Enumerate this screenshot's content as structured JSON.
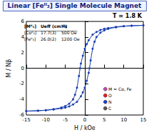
{
  "chart_data": {
    "type": "line",
    "title": "Linear [Feᴵᴵ₃] Single Molecule Magnet",
    "x_label": "H / kOe",
    "y_label": "M / Nβ",
    "annotation": "T = 1.8 K",
    "xlim": [
      -15,
      15
    ],
    "xticks": [
      -15,
      -10,
      -5,
      0,
      5,
      10,
      15
    ],
    "ylim": [
      -6,
      6
    ],
    "yticks": [
      -6,
      -4,
      -2,
      0,
      2,
      4,
      6
    ],
    "grid": false,
    "marker": "circle",
    "series": [
      {
        "color": "#1a3fb0",
        "x": [
          15,
          12,
          10,
          8,
          6,
          5,
          4,
          3,
          2,
          1,
          0.5,
          0,
          -0.5,
          -1,
          -1.2,
          -1.5,
          -2,
          -2.5,
          -3,
          -4,
          -5,
          -6,
          -8,
          -10,
          -12,
          -15
        ],
        "values": [
          5.5,
          5.45,
          5.4,
          5.3,
          5.15,
          5.05,
          4.9,
          4.65,
          4.3,
          3.6,
          3.1,
          2.5,
          1.6,
          0.6,
          0,
          -1.0,
          -2.5,
          -3.4,
          -4.0,
          -4.55,
          -4.85,
          -5.05,
          -5.25,
          -5.38,
          -5.45,
          -5.5
        ]
      },
      {
        "color": "#1a3fb0",
        "x": [
          -15,
          -12,
          -10,
          -8,
          -6,
          -5,
          -4,
          -3,
          -2,
          -1,
          -0.5,
          0,
          0.5,
          1,
          1.2,
          1.5,
          2,
          2.5,
          3,
          4,
          5,
          6,
          8,
          10,
          12,
          15
        ],
        "values": [
          -5.5,
          -5.45,
          -5.4,
          -5.3,
          -5.15,
          -5.05,
          -4.9,
          -4.65,
          -4.3,
          -3.6,
          -3.1,
          -2.5,
          -1.6,
          -0.6,
          0,
          1.0,
          2.5,
          3.4,
          4.0,
          4.55,
          4.85,
          5.05,
          5.25,
          5.38,
          5.45,
          5.5
        ]
      }
    ],
    "table": {
      "header": [
        "[Mᴵᴵ₃]",
        "Ueff (cm⁻¹)",
        "Hc"
      ],
      "rows": [
        [
          "[Coᴵᴵ₃]",
          "17.7(3)",
          "500 Oe"
        ],
        [
          "[Feᴵᴵ₃]",
          "26.0(2)",
          "1200 Oe"
        ]
      ]
    },
    "atom_legend": [
      {
        "label": "M = Co, Fe",
        "color": "#c04ab0"
      },
      {
        "label": "O",
        "color": "#e02020"
      },
      {
        "label": "N",
        "color": "#2040d0"
      },
      {
        "label": "C",
        "color": "#555555"
      }
    ]
  }
}
